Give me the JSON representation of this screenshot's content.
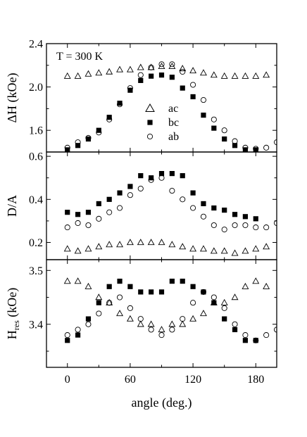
{
  "chart_data": [
    {
      "type": "scatter",
      "ylabel": "ΔH (kOe)",
      "annotation": "T = 300 K",
      "ylim": [
        1.4,
        2.4
      ],
      "yticks": [
        "1.6",
        "2.0",
        "2.4"
      ],
      "ytick_values": [
        1.6,
        2.0,
        2.4
      ],
      "legend_position": "center-right",
      "series": [
        {
          "name": "ac",
          "marker": "triangle-open",
          "x": [
            0,
            10,
            20,
            30,
            40,
            50,
            60,
            70,
            80,
            90,
            100,
            110,
            120,
            130,
            140,
            150,
            160,
            170,
            180,
            190
          ],
          "y": [
            2.1,
            2.1,
            2.12,
            2.13,
            2.14,
            2.16,
            2.16,
            2.18,
            2.18,
            2.19,
            2.19,
            2.17,
            2.15,
            2.13,
            2.11,
            2.1,
            2.1,
            2.1,
            2.1,
            2.11
          ]
        },
        {
          "name": "bc",
          "marker": "square-filled",
          "x": [
            0,
            10,
            20,
            30,
            40,
            50,
            60,
            70,
            80,
            90,
            100,
            110,
            120,
            130,
            140,
            150,
            160,
            170,
            180
          ],
          "y": [
            1.42,
            1.46,
            1.52,
            1.6,
            1.72,
            1.85,
            1.97,
            2.06,
            2.1,
            2.11,
            2.09,
            1.99,
            1.91,
            1.74,
            1.62,
            1.52,
            1.46,
            1.42,
            1.42
          ]
        },
        {
          "name": "ab",
          "marker": "circle-open",
          "x": [
            0,
            10,
            20,
            30,
            40,
            50,
            60,
            70,
            80,
            90,
            100,
            110,
            120,
            130,
            140,
            150,
            160,
            170,
            180,
            190,
            200
          ],
          "y": [
            1.44,
            1.49,
            1.53,
            1.58,
            1.7,
            1.84,
            1.99,
            2.11,
            2.18,
            2.21,
            2.21,
            2.14,
            2.02,
            1.88,
            1.7,
            1.6,
            1.5,
            1.44,
            1.43,
            1.44,
            1.49
          ]
        }
      ]
    },
    {
      "type": "scatter",
      "ylabel": "D/A",
      "ylim": [
        0.12,
        0.62
      ],
      "yticks": [
        "0.2",
        "0.4",
        "0.6"
      ],
      "ytick_values": [
        0.2,
        0.4,
        0.6
      ],
      "series": [
        {
          "name": "ac",
          "marker": "triangle-open",
          "x": [
            0,
            10,
            20,
            30,
            40,
            50,
            60,
            70,
            80,
            90,
            100,
            110,
            120,
            130,
            140,
            150,
            160,
            170,
            180,
            190
          ],
          "y": [
            0.17,
            0.16,
            0.17,
            0.18,
            0.19,
            0.19,
            0.2,
            0.2,
            0.2,
            0.2,
            0.19,
            0.18,
            0.17,
            0.17,
            0.16,
            0.16,
            0.15,
            0.16,
            0.17,
            0.18
          ]
        },
        {
          "name": "bc",
          "marker": "square-filled",
          "x": [
            0,
            10,
            20,
            30,
            40,
            50,
            60,
            70,
            80,
            90,
            100,
            110,
            120,
            130,
            140,
            150,
            160,
            170,
            180
          ],
          "y": [
            0.34,
            0.33,
            0.34,
            0.38,
            0.4,
            0.43,
            0.46,
            0.51,
            0.5,
            0.52,
            0.52,
            0.51,
            0.43,
            0.38,
            0.36,
            0.35,
            0.33,
            0.32,
            0.31
          ]
        },
        {
          "name": "ab",
          "marker": "circle-open",
          "x": [
            0,
            10,
            20,
            30,
            40,
            50,
            60,
            70,
            80,
            90,
            100,
            110,
            120,
            130,
            140,
            150,
            160,
            170,
            180,
            190,
            200
          ],
          "y": [
            0.27,
            0.29,
            0.28,
            0.31,
            0.34,
            0.36,
            0.42,
            0.45,
            0.49,
            0.5,
            0.44,
            0.4,
            0.36,
            0.32,
            0.28,
            0.26,
            0.28,
            0.28,
            0.27,
            0.27,
            0.29
          ]
        }
      ]
    },
    {
      "type": "scatter",
      "ylabel_main": "H",
      "ylabel_sub": "res",
      "ylabel_unit": " (kOe)",
      "ylim": [
        3.32,
        3.52
      ],
      "yticks": [
        "3.4",
        "3.5"
      ],
      "ytick_values": [
        3.4,
        3.5
      ],
      "xlabel": "angle (deg.)",
      "xlim": [
        -20,
        200
      ],
      "xticks": [
        "0",
        "60",
        "120",
        "180"
      ],
      "xtick_values": [
        0,
        60,
        120,
        180
      ],
      "series": [
        {
          "name": "ac",
          "marker": "triangle-open",
          "x": [
            0,
            10,
            20,
            30,
            40,
            50,
            60,
            70,
            80,
            90,
            100,
            110,
            120,
            130,
            140,
            150,
            160,
            170,
            180,
            190
          ],
          "y": [
            3.48,
            3.48,
            3.47,
            3.45,
            3.44,
            3.42,
            3.41,
            3.4,
            3.4,
            3.39,
            3.4,
            3.4,
            3.41,
            3.42,
            3.44,
            3.44,
            3.45,
            3.47,
            3.48,
            3.47
          ]
        },
        {
          "name": "bc",
          "marker": "square-filled",
          "x": [
            0,
            10,
            20,
            30,
            40,
            50,
            60,
            70,
            80,
            90,
            100,
            110,
            120,
            130,
            140,
            150,
            160,
            170,
            180
          ],
          "y": [
            3.37,
            3.38,
            3.41,
            3.44,
            3.47,
            3.48,
            3.47,
            3.46,
            3.46,
            3.46,
            3.48,
            3.48,
            3.47,
            3.46,
            3.44,
            3.41,
            3.39,
            3.37,
            3.37
          ]
        },
        {
          "name": "ab",
          "marker": "circle-open",
          "x": [
            0,
            10,
            20,
            30,
            40,
            50,
            60,
            70,
            80,
            90,
            100,
            110,
            120,
            130,
            140,
            150,
            160,
            170,
            180,
            190,
            200
          ],
          "y": [
            3.38,
            3.39,
            3.4,
            3.42,
            3.44,
            3.45,
            3.43,
            3.41,
            3.39,
            3.38,
            3.39,
            3.41,
            3.44,
            3.46,
            3.45,
            3.43,
            3.4,
            3.38,
            3.37,
            3.38,
            3.39
          ]
        }
      ]
    }
  ]
}
